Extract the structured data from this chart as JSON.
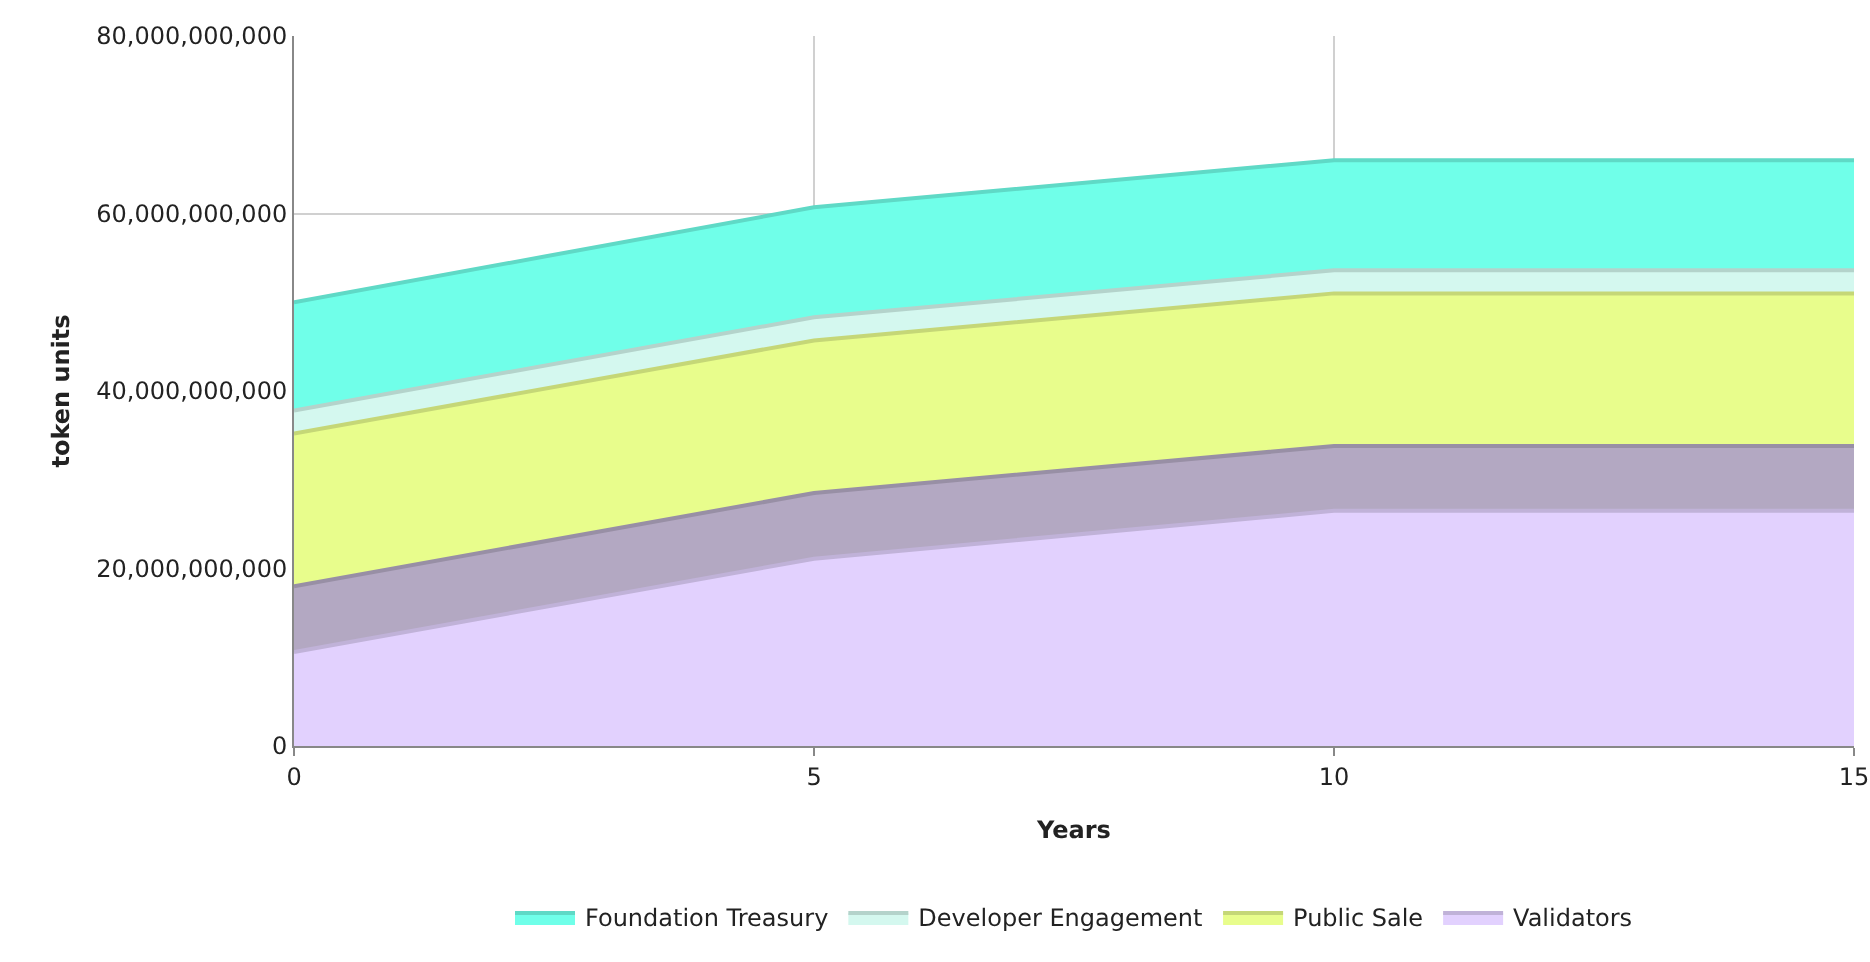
{
  "chart_data": {
    "type": "area",
    "stacked": true,
    "xlabel": "Years",
    "ylabel": "token units",
    "x": [
      0,
      5,
      10,
      15
    ],
    "series": [
      {
        "name": "Validators",
        "color": "#e2d1fe",
        "values": [
          10600000000,
          21100000000,
          26500000000,
          26500000000
        ]
      },
      {
        "color": "#b3a8c2",
        "values": [
          7400000000,
          7400000000,
          7300000000,
          7300000000
        ]
      },
      {
        "name": "Public Sale",
        "color": "#e8fd8c",
        "values": [
          17200000000,
          17200000000,
          17200000000,
          17200000000
        ]
      },
      {
        "name": "Developer Engagement",
        "color": "#d4f8ef",
        "values": [
          2600000000,
          2600000000,
          2600000000,
          2600000000
        ]
      },
      {
        "name": "Foundation Treasury",
        "color": "#70ffe9",
        "values": [
          12200000000,
          12400000000,
          12400000000,
          12400000000
        ]
      }
    ],
    "xlim": [
      0,
      15
    ],
    "xticks": [
      0,
      5,
      10,
      15
    ],
    "ylim": [
      0,
      80000000000
    ],
    "yticks": [
      0,
      {
        "value": 20000000000,
        "label": "20,000,000,000"
      },
      {
        "value": 40000000000,
        "label": "40,000,000,000"
      },
      {
        "value": 60000000000,
        "label": "60,000,000,000"
      },
      {
        "value": 80000000000,
        "label": "80,000,000,000"
      }
    ],
    "grid": true,
    "legend": "bottom"
  }
}
